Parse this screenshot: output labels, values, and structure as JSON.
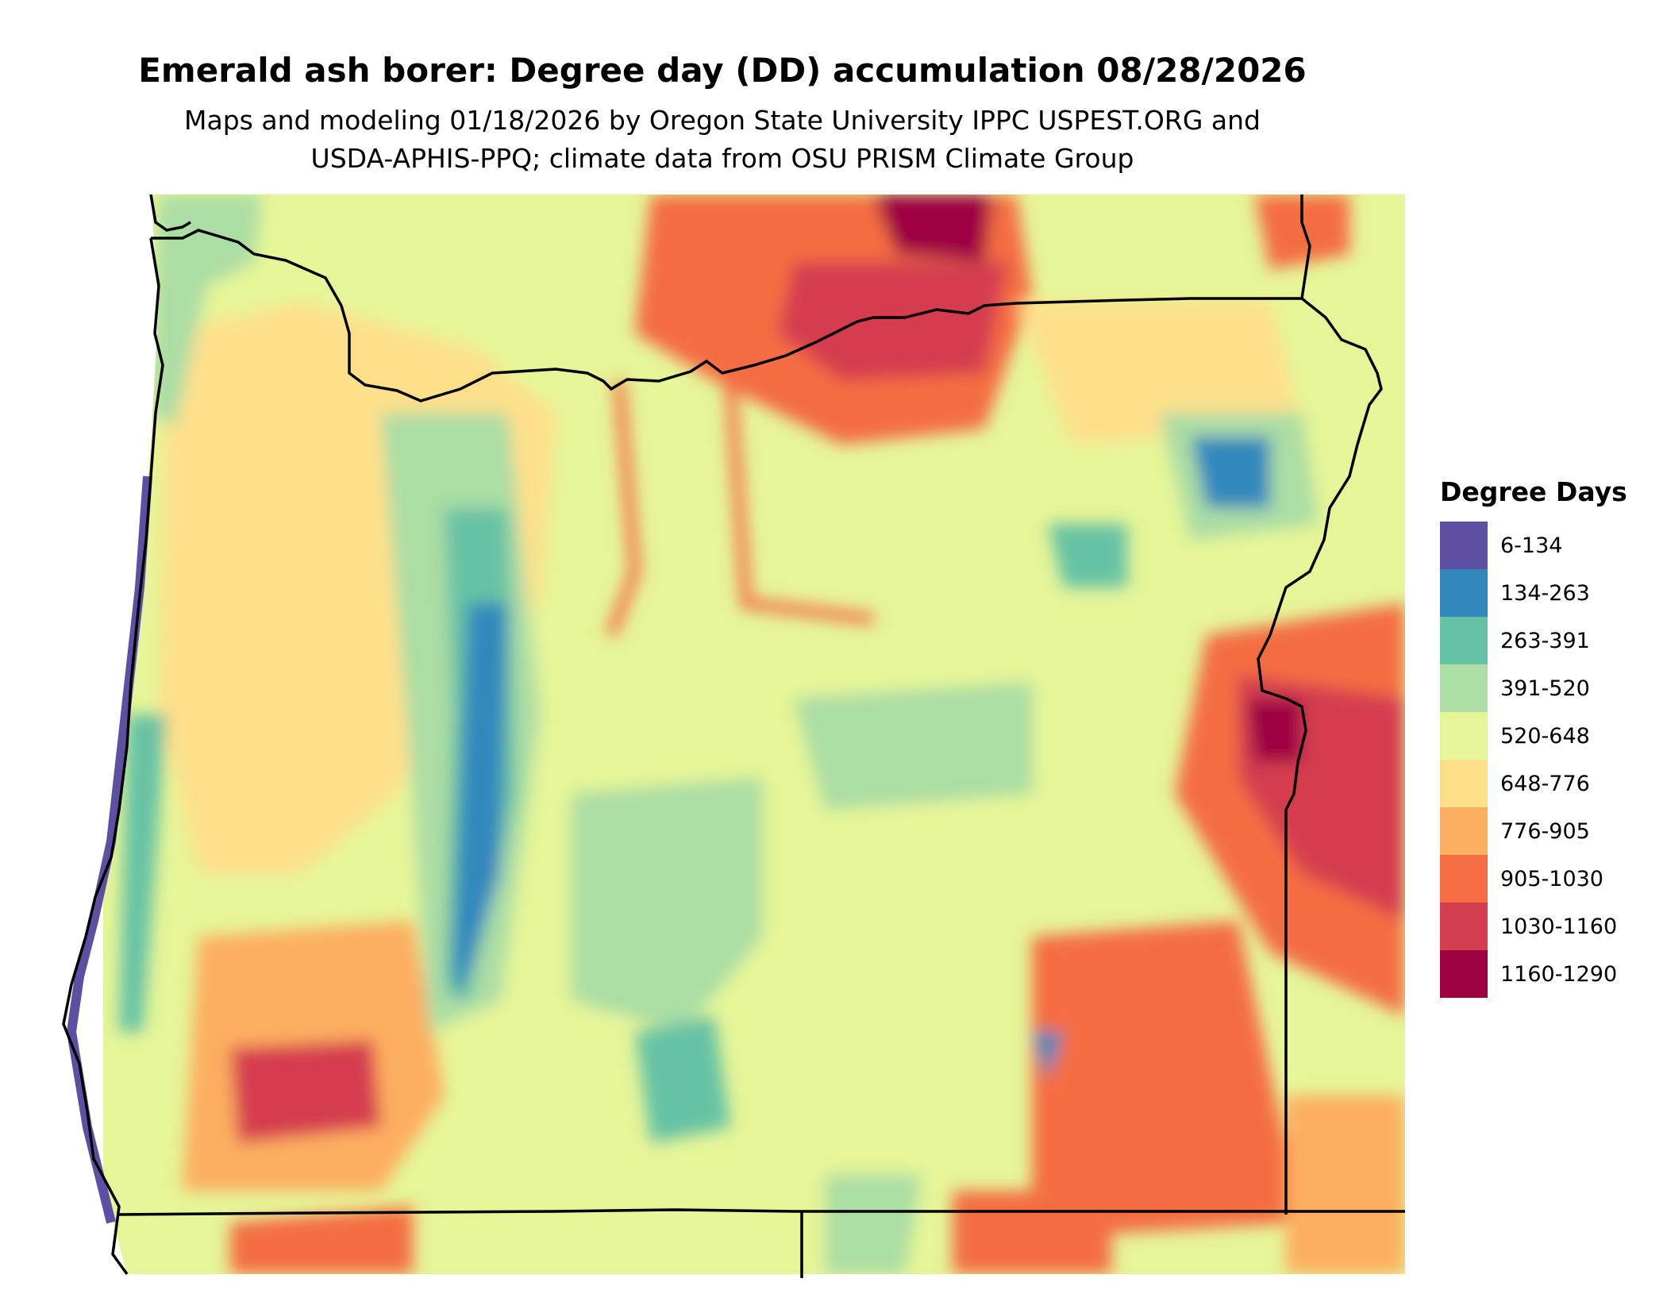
{
  "title": "Emerald ash borer: Degree day (DD) accumulation 08/28/2026",
  "subtitle_line1": "Maps and modeling 01/18/2026 by Oregon State University IPPC USPEST.ORG and",
  "subtitle_line2": "USDA-APHIS-PPQ; climate data from OSU PRISM Climate Group",
  "legend": {
    "title": "Degree Days",
    "items": [
      {
        "label": "6-134",
        "color": "#5e4fa2"
      },
      {
        "label": "134-263",
        "color": "#3288bd"
      },
      {
        "label": "263-391",
        "color": "#66c2a5"
      },
      {
        "label": "391-520",
        "color": "#abdda4"
      },
      {
        "label": "520-648",
        "color": "#e6f598"
      },
      {
        "label": "648-776",
        "color": "#fee08b"
      },
      {
        "label": "776-905",
        "color": "#fdae61"
      },
      {
        "label": "905-1030",
        "color": "#f46d43"
      },
      {
        "label": "1030-1160",
        "color": "#d53e4f"
      },
      {
        "label": "1160-1290",
        "color": "#9e0142"
      }
    ]
  },
  "map": {
    "region": "Oregon",
    "background_color": "#e6f598",
    "boundary_color": "#000000",
    "ocean_color": "#ffffff"
  }
}
